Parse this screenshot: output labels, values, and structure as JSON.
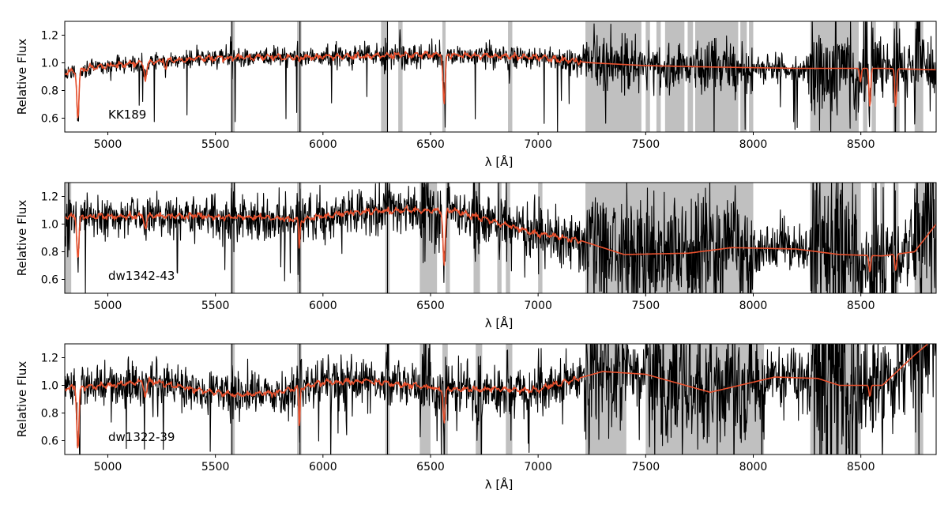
{
  "chart_data": [
    {
      "type": "line",
      "object_label": "KK189",
      "xlabel": "λ [Å]",
      "ylabel": "Relative Flux",
      "xlim": [
        4800,
        8850
      ],
      "ylim": [
        0.5,
        1.3
      ],
      "xticks": [
        5000,
        5500,
        6000,
        6500,
        7000,
        7500,
        8000,
        8500
      ],
      "yticks": [
        0.6,
        0.8,
        1.0,
        1.2
      ],
      "series": [
        {
          "role": "observed spectrum",
          "color": "#000000",
          "noise": [
            0.03,
            0.04,
            0.05,
            0.1
          ]
        },
        {
          "role": "best-fit model",
          "color": "#e8502d"
        }
      ],
      "continuum": [
        [
          4800,
          0.93
        ],
        [
          4900,
          0.96
        ],
        [
          5100,
          0.99
        ],
        [
          5300,
          1.02
        ],
        [
          5600,
          1.04
        ],
        [
          5900,
          1.04
        ],
        [
          6200,
          1.05
        ],
        [
          6500,
          1.06
        ],
        [
          6800,
          1.05
        ],
        [
          7000,
          1.04
        ],
        [
          7250,
          1.0
        ],
        [
          7500,
          0.98
        ],
        [
          7800,
          0.97
        ],
        [
          8200,
          0.96
        ],
        [
          8600,
          0.96
        ],
        [
          8850,
          0.95
        ]
      ],
      "absorption_lines": [
        [
          4861,
          0.35,
          10
        ],
        [
          5175,
          0.12,
          12
        ],
        [
          5270,
          0.05,
          8
        ],
        [
          5890,
          0.05,
          6
        ],
        [
          6563,
          0.35,
          10
        ],
        [
          8498,
          0.1,
          8
        ],
        [
          8542,
          0.28,
          8
        ],
        [
          8662,
          0.28,
          8
        ]
      ],
      "masked_regions": [
        [
          5570,
          5590
        ],
        [
          5880,
          5900
        ],
        [
          6270,
          6300
        ],
        [
          6350,
          6370
        ],
        [
          6555,
          6570
        ],
        [
          6860,
          6880
        ],
        [
          7220,
          7480
        ],
        [
          7500,
          7520
        ],
        [
          7550,
          7570
        ],
        [
          7590,
          7680
        ],
        [
          7695,
          7720
        ],
        [
          7730,
          7930
        ],
        [
          7940,
          7970
        ],
        [
          7980,
          8000
        ],
        [
          8265,
          8490
        ],
        [
          8510,
          8530
        ],
        [
          8550,
          8570
        ],
        [
          8650,
          8680
        ],
        [
          8750,
          8790
        ]
      ]
    },
    {
      "type": "line",
      "object_label": "dw1342-43",
      "xlabel": "λ [Å]",
      "ylabel": "Relative Flux",
      "xlim": [
        4800,
        8850
      ],
      "ylim": [
        0.5,
        1.3
      ],
      "xticks": [
        5000,
        5500,
        6000,
        6500,
        7000,
        7500,
        8000,
        8500
      ],
      "yticks": [
        0.6,
        0.8,
        1.0,
        1.2
      ],
      "series": [
        {
          "role": "observed spectrum",
          "color": "#000000",
          "noise": [
            0.08,
            0.09,
            0.1,
            0.15
          ]
        },
        {
          "role": "best-fit model",
          "color": "#e8502d"
        }
      ],
      "continuum": [
        [
          4800,
          1.05
        ],
        [
          5200,
          1.06
        ],
        [
          5700,
          1.05
        ],
        [
          5900,
          1.03
        ],
        [
          6100,
          1.08
        ],
        [
          6400,
          1.1
        ],
        [
          6600,
          1.1
        ],
        [
          7000,
          0.93
        ],
        [
          7200,
          0.88
        ],
        [
          7400,
          0.78
        ],
        [
          7700,
          0.79
        ],
        [
          7900,
          0.83
        ],
        [
          8200,
          0.82
        ],
        [
          8400,
          0.78
        ],
        [
          8600,
          0.77
        ],
        [
          8750,
          0.8
        ],
        [
          8850,
          1.0
        ]
      ],
      "absorption_lines": [
        [
          4861,
          0.3,
          10
        ],
        [
          5175,
          0.08,
          12
        ],
        [
          5890,
          0.2,
          6
        ],
        [
          6563,
          0.4,
          10
        ],
        [
          8542,
          0.12,
          8
        ],
        [
          8662,
          0.12,
          8
        ]
      ],
      "masked_regions": [
        [
          4800,
          4830
        ],
        [
          5570,
          5590
        ],
        [
          5880,
          5900
        ],
        [
          6290,
          6310
        ],
        [
          6450,
          6530
        ],
        [
          6570,
          6590
        ],
        [
          6700,
          6730
        ],
        [
          6810,
          6830
        ],
        [
          6850,
          6870
        ],
        [
          7000,
          7020
        ],
        [
          7220,
          8000
        ],
        [
          8265,
          8500
        ],
        [
          8550,
          8575
        ],
        [
          8590,
          8610
        ],
        [
          8650,
          8675
        ],
        [
          8750,
          8850
        ]
      ]
    },
    {
      "type": "line",
      "object_label": "dw1322-39",
      "xlabel": "λ [Å]",
      "ylabel": "Relative Flux",
      "xlim": [
        4800,
        8850
      ],
      "ylim": [
        0.5,
        1.3
      ],
      "xticks": [
        5000,
        5500,
        6000,
        6500,
        7000,
        7500,
        8000,
        8500
      ],
      "yticks": [
        0.6,
        0.8,
        1.0,
        1.2
      ],
      "series": [
        {
          "role": "observed spectrum",
          "color": "#000000",
          "noise": [
            0.08,
            0.09,
            0.1,
            0.18
          ]
        },
        {
          "role": "best-fit model",
          "color": "#e8502d"
        }
      ],
      "continuum": [
        [
          4800,
          0.98
        ],
        [
          5000,
          1.0
        ],
        [
          5200,
          1.03
        ],
        [
          5400,
          0.97
        ],
        [
          5600,
          0.93
        ],
        [
          5800,
          0.95
        ],
        [
          6000,
          1.02
        ],
        [
          6200,
          1.03
        ],
        [
          6400,
          1.0
        ],
        [
          6600,
          0.97
        ],
        [
          7000,
          0.97
        ],
        [
          7300,
          1.1
        ],
        [
          7500,
          1.08
        ],
        [
          7800,
          0.95
        ],
        [
          8100,
          1.06
        ],
        [
          8300,
          1.05
        ],
        [
          8400,
          1.0
        ],
        [
          8600,
          1.0
        ],
        [
          8750,
          1.22
        ],
        [
          8850,
          1.35
        ]
      ],
      "absorption_lines": [
        [
          4861,
          0.45,
          10
        ],
        [
          5175,
          0.1,
          12
        ],
        [
          5890,
          0.3,
          6
        ],
        [
          6563,
          0.25,
          10
        ],
        [
          8542,
          0.08,
          8
        ]
      ],
      "masked_regions": [
        [
          5570,
          5590
        ],
        [
          5880,
          5900
        ],
        [
          6290,
          6310
        ],
        [
          6450,
          6500
        ],
        [
          6555,
          6580
        ],
        [
          6710,
          6740
        ],
        [
          6850,
          6880
        ],
        [
          7220,
          7410
        ],
        [
          7500,
          8050
        ],
        [
          8265,
          8500
        ],
        [
          8750,
          8790
        ]
      ]
    }
  ]
}
